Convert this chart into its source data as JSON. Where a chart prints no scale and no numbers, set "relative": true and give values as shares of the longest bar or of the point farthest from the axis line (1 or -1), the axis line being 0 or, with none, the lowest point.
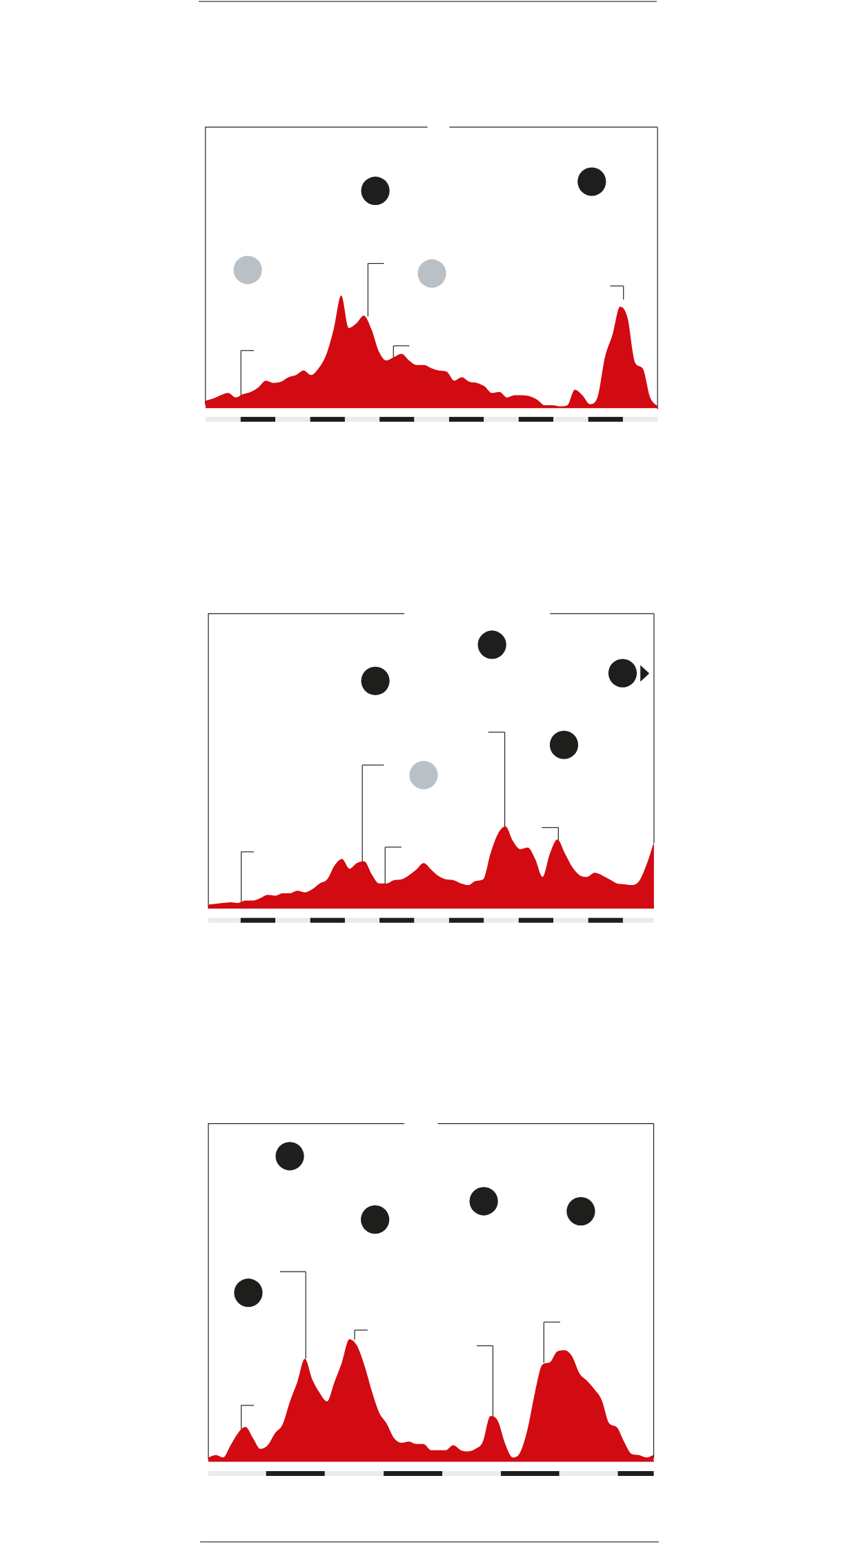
{
  "chart_data": [
    {
      "type": "area",
      "relative": true,
      "color": "#d20a11",
      "categories": [
        null,
        null,
        null,
        null,
        null,
        null,
        null,
        null,
        null,
        null,
        null,
        null,
        null,
        null,
        null,
        null,
        null,
        null,
        null,
        null,
        null,
        null,
        null,
        null,
        null,
        null,
        null,
        null,
        null,
        null,
        null,
        null,
        null,
        null,
        null,
        null,
        null,
        null,
        null,
        null,
        null,
        null,
        null,
        null,
        null,
        null,
        null,
        null,
        null,
        null,
        null,
        null,
        null,
        null,
        null,
        null,
        null,
        null,
        null,
        null,
        null
      ],
      "values": [
        0.06,
        0.08,
        0.11,
        0.13,
        0.09,
        0.12,
        0.14,
        0.18,
        0.24,
        0.22,
        0.23,
        0.27,
        0.29,
        0.33,
        0.29,
        0.35,
        0.47,
        0.7,
        1,
        0.71,
        0.75,
        0.82,
        0.7,
        0.5,
        0.42,
        0.45,
        0.48,
        0.42,
        0.38,
        0.38,
        0.35,
        0.33,
        0.32,
        0.24,
        0.27,
        0.23,
        0.22,
        0.19,
        0.13,
        0.14,
        0.09,
        0.11,
        0.11,
        0.1,
        0.07,
        0.02,
        0.02,
        0.01,
        0.02,
        0.16,
        0.11,
        0.03,
        0.09,
        0.45,
        0.65,
        0.9,
        0.8,
        0.4,
        0.35,
        0.09,
        0.01
      ]
    },
    {
      "type": "area",
      "relative": true,
      "color": "#d20a11",
      "categories": [
        null,
        null,
        null,
        null,
        null,
        null,
        null,
        null,
        null,
        null,
        null,
        null,
        null,
        null,
        null,
        null,
        null,
        null,
        null,
        null,
        null,
        null,
        null,
        null,
        null,
        null,
        null,
        null,
        null,
        null,
        null,
        null,
        null,
        null,
        null,
        null,
        null,
        null,
        null,
        null,
        null,
        null,
        null,
        null,
        null,
        null,
        null,
        null,
        null,
        null,
        null,
        null,
        null,
        null,
        null,
        null,
        null,
        null,
        null,
        null,
        null
      ],
      "values": [
        0.04,
        0.05,
        0.06,
        0.07,
        0.06,
        0.09,
        0.09,
        0.12,
        0.16,
        0.15,
        0.18,
        0.18,
        0.21,
        0.19,
        0.23,
        0.3,
        0.35,
        0.52,
        0.6,
        0.48,
        0.55,
        0.57,
        0.41,
        0.3,
        0.3,
        0.34,
        0.35,
        0.4,
        0.47,
        0.55,
        0.47,
        0.39,
        0.35,
        0.34,
        0.3,
        0.28,
        0.33,
        0.35,
        0.67,
        0.91,
        1,
        0.82,
        0.72,
        0.74,
        0.6,
        0.38,
        0.67,
        0.84,
        0.67,
        0.5,
        0.4,
        0.38,
        0.43,
        0.4,
        0.35,
        0.3,
        0.29,
        0.28,
        0.33,
        0.53,
        0.81
      ]
    },
    {
      "type": "area",
      "relative": true,
      "color": "#d20a11",
      "categories": [
        null,
        null,
        null,
        null,
        null,
        null,
        null,
        null,
        null,
        null,
        null,
        null,
        null,
        null,
        null,
        null,
        null,
        null,
        null,
        null,
        null,
        null,
        null,
        null,
        null,
        null,
        null,
        null,
        null,
        null,
        null,
        null,
        null,
        null,
        null,
        null,
        null,
        null,
        null,
        null,
        null,
        null,
        null,
        null,
        null,
        null,
        null,
        null,
        null,
        null,
        null,
        null,
        null,
        null,
        null,
        null,
        null,
        null,
        null,
        null,
        null
      ],
      "values": [
        0.03,
        0.05,
        0.03,
        0.13,
        0.23,
        0.28,
        0.19,
        0.1,
        0.13,
        0.23,
        0.3,
        0.49,
        0.65,
        0.84,
        0.67,
        0.56,
        0.49,
        0.65,
        0.81,
        1,
        0.95,
        0.79,
        0.58,
        0.4,
        0.31,
        0.19,
        0.15,
        0.16,
        0.14,
        0.14,
        0.09,
        0.09,
        0.09,
        0.13,
        0.09,
        0.08,
        0.1,
        0.16,
        0.37,
        0.33,
        0.14,
        0.03,
        0.07,
        0.26,
        0.56,
        0.79,
        0.81,
        0.9,
        0.91,
        0.86,
        0.72,
        0.66,
        0.59,
        0.5,
        0.31,
        0.28,
        0.16,
        0.06,
        0.05,
        0.03,
        0.05
      ]
    }
  ]
}
